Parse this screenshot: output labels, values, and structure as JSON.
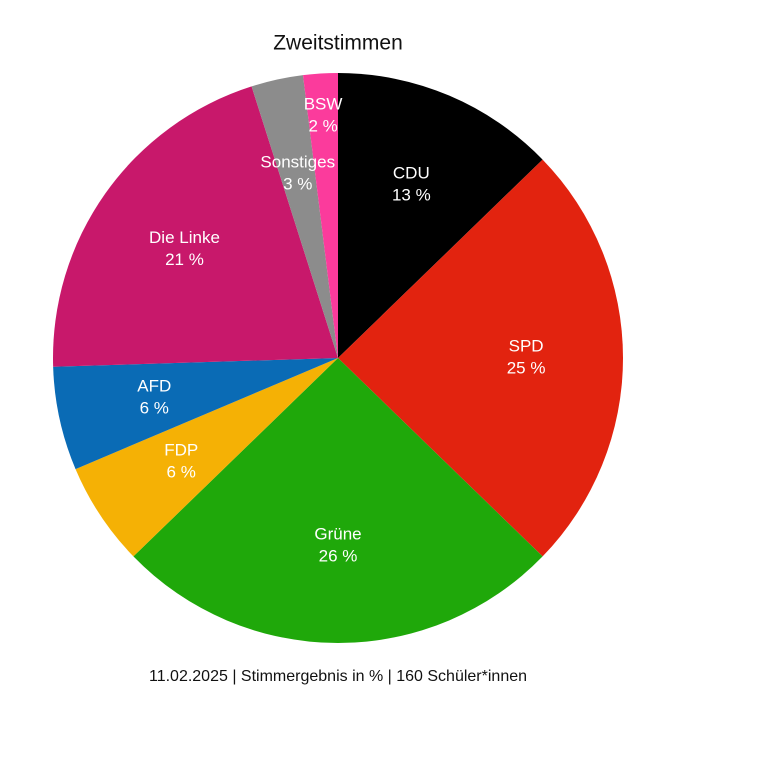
{
  "chart_data": {
    "type": "pie",
    "title": "Zweitstimmen",
    "subtitle": "11.02.2025 | Stimmergebnis in % | 160 Schüler*innen",
    "categories": [
      "CDU",
      "SPD",
      "Grüne",
      "FDP",
      "AFD",
      "Die Linke",
      "Sonstiges",
      "BSW"
    ],
    "values": [
      13,
      25,
      26,
      6,
      6,
      21,
      3,
      2
    ],
    "value_labels": [
      "13 %",
      "25 %",
      "26 %",
      "6 %",
      "6 %",
      "21 %",
      "3 %",
      "2 %"
    ],
    "colors": [
      "#000000",
      "#e2230f",
      "#1fa80a",
      "#f5b105",
      "#0a6bb5",
      "#c8186b",
      "#8c8c8c",
      "#fb3b9c"
    ]
  }
}
